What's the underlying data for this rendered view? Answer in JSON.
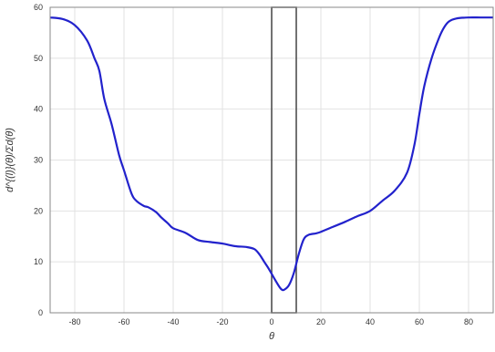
{
  "chart_data": {
    "type": "line",
    "title": "",
    "xlabel": "θ",
    "ylabel": "d^{(l)}(θ)/Σd(θ)",
    "xlim": [
      -90,
      90
    ],
    "ylim": [
      0,
      60
    ],
    "xticks": [
      -80,
      -60,
      -40,
      -20,
      0,
      20,
      40,
      60,
      80
    ],
    "yticks": [
      0,
      10,
      20,
      30,
      40,
      50,
      60
    ],
    "grid": true,
    "line_color": "#2222cc",
    "highlight_box": {
      "x_range": [
        0,
        10
      ],
      "y_range": [
        0,
        60
      ],
      "color": "#444444"
    },
    "series": [
      {
        "x": [
          -90,
          -85,
          -80,
          -75,
          -72,
          -70,
          -68,
          -65,
          -62,
          -60,
          -57,
          -55,
          -52,
          -50,
          -47,
          -45,
          -42,
          -40,
          -35,
          -30,
          -25,
          -20,
          -15,
          -10,
          -7,
          -5,
          -3,
          -1,
          1,
          3,
          4,
          5,
          7,
          9,
          11,
          13,
          15,
          18,
          20,
          25,
          30,
          35,
          40,
          45,
          50,
          55,
          58,
          60,
          62,
          65,
          68,
          70,
          72,
          75,
          80,
          85,
          90
        ],
        "y": [
          58,
          57.7,
          56.5,
          53.5,
          50,
          47.5,
          42,
          37,
          31,
          28,
          23.5,
          22,
          21,
          20.7,
          19.8,
          18.8,
          17.5,
          16.6,
          15.7,
          14.3,
          13.9,
          13.6,
          13.1,
          12.9,
          12.5,
          11.5,
          10,
          8.5,
          6.8,
          5.2,
          4.6,
          4.5,
          5.4,
          7.8,
          11.5,
          14.4,
          15.3,
          15.6,
          15.9,
          16.9,
          17.9,
          19,
          20,
          22,
          24,
          27.5,
          33,
          39,
          44.5,
          50,
          54,
          56,
          57.2,
          57.8,
          58,
          58,
          58
        ]
      }
    ]
  }
}
